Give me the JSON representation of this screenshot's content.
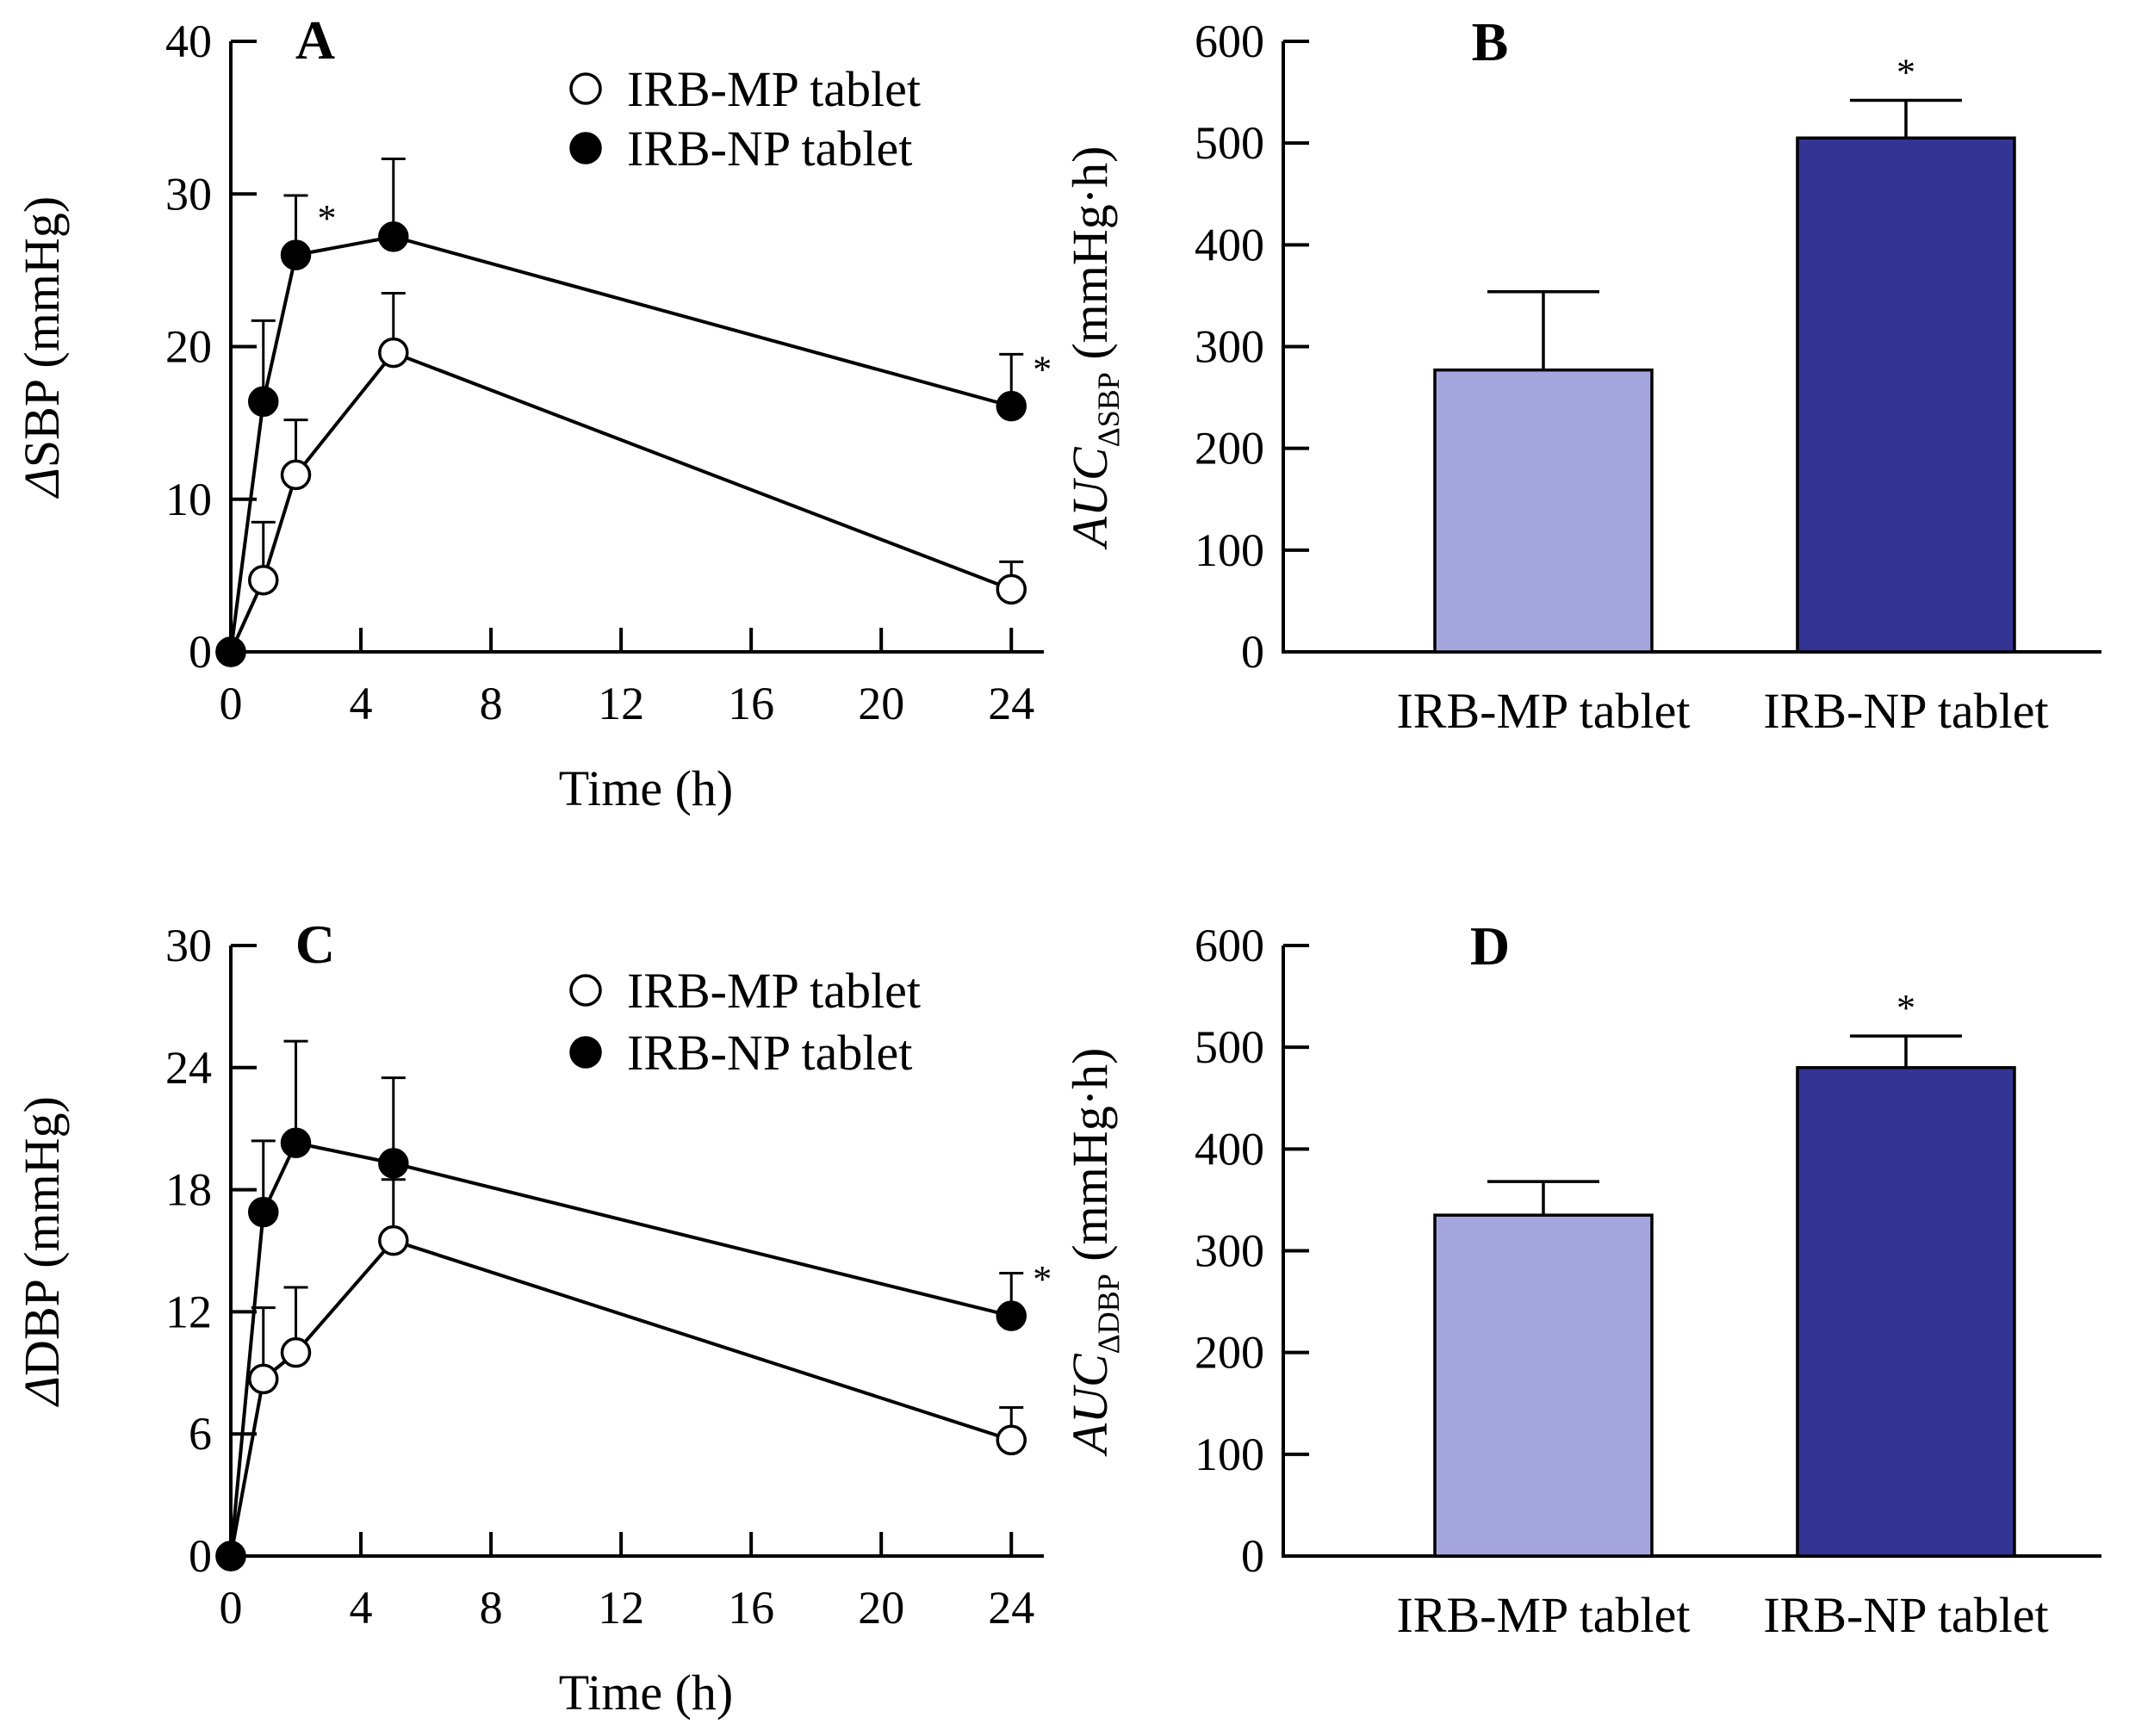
{
  "chart_data": [
    {
      "panel": "A",
      "type": "line",
      "xlabel": "Time (h)",
      "ylabel_symbol": "Δ",
      "ylabel_text": "SBP (mmHg)",
      "xlim": [
        0,
        25
      ],
      "ylim": [
        0,
        40
      ],
      "xticks": [
        0,
        4,
        8,
        12,
        16,
        20,
        24
      ],
      "yticks": [
        0,
        10,
        20,
        30,
        40
      ],
      "series": [
        {
          "name": "IRB-MP tablet",
          "marker": "open-circle",
          "x": [
            0,
            1,
            2,
            5,
            24
          ],
          "values": [
            0,
            4.7,
            11.6,
            19.6,
            4.1
          ],
          "errors": [
            0,
            3.8,
            3.6,
            3.9,
            1.8
          ],
          "significant": [
            false,
            false,
            false,
            false,
            false
          ]
        },
        {
          "name": "IRB-NP tablet",
          "marker": "filled-circle",
          "x": [
            0,
            1,
            2,
            5,
            24
          ],
          "values": [
            0,
            16.4,
            26.0,
            27.2,
            16.1
          ],
          "errors": [
            0,
            5.3,
            3.9,
            5.1,
            3.4
          ],
          "significant": [
            false,
            false,
            true,
            false,
            true
          ]
        }
      ],
      "significance_marker": "*"
    },
    {
      "panel": "B",
      "type": "bar",
      "categories": [
        "IRB-MP tablet",
        "IRB-NP tablet"
      ],
      "values": [
        277,
        505
      ],
      "errors": [
        77,
        37
      ],
      "significant": [
        false,
        true
      ],
      "colors": [
        "#a6a6df",
        "#343494"
      ],
      "ylabel_main": "AUC",
      "ylabel_sub": "ΔSBP",
      "ylabel_unit": "(mmHg·h)",
      "ylim": [
        0,
        600
      ],
      "yticks": [
        0,
        100,
        200,
        300,
        400,
        500,
        600
      ],
      "significance_marker": "*"
    },
    {
      "panel": "C",
      "type": "line",
      "xlabel": "Time (h)",
      "ylabel_symbol": "Δ",
      "ylabel_text": "DBP (mmHg)",
      "xlim": [
        0,
        25
      ],
      "ylim": [
        0,
        30
      ],
      "xticks": [
        0,
        4,
        8,
        12,
        16,
        20,
        24
      ],
      "yticks": [
        0,
        6,
        12,
        18,
        24,
        30
      ],
      "series": [
        {
          "name": "IRB-MP tablet",
          "marker": "open-circle",
          "x": [
            0,
            1,
            2,
            5,
            24
          ],
          "values": [
            0,
            8.7,
            10.0,
            15.5,
            5.7
          ],
          "errors": [
            0,
            3.5,
            3.2,
            3.0,
            1.6
          ],
          "significant": [
            false,
            false,
            false,
            false,
            false
          ]
        },
        {
          "name": "IRB-NP tablet",
          "marker": "filled-circle",
          "x": [
            0,
            1,
            2,
            5,
            24
          ],
          "values": [
            0,
            16.9,
            20.3,
            19.3,
            11.8
          ],
          "errors": [
            0,
            3.5,
            5.0,
            4.2,
            2.1
          ],
          "significant": [
            false,
            false,
            false,
            false,
            true
          ]
        }
      ],
      "significance_marker": "*"
    },
    {
      "panel": "D",
      "type": "bar",
      "categories": [
        "IRB-MP tablet",
        "IRB-NP tablet"
      ],
      "values": [
        335,
        480
      ],
      "errors": [
        33,
        31
      ],
      "significant": [
        false,
        true
      ],
      "colors": [
        "#a6a6df",
        "#343494"
      ],
      "ylabel_main": "AUC",
      "ylabel_sub": "ΔDBP",
      "ylabel_unit": "(mmHg·h)",
      "ylim": [
        0,
        600
      ],
      "yticks": [
        0,
        100,
        200,
        300,
        400,
        500,
        600
      ],
      "significance_marker": "*"
    }
  ]
}
